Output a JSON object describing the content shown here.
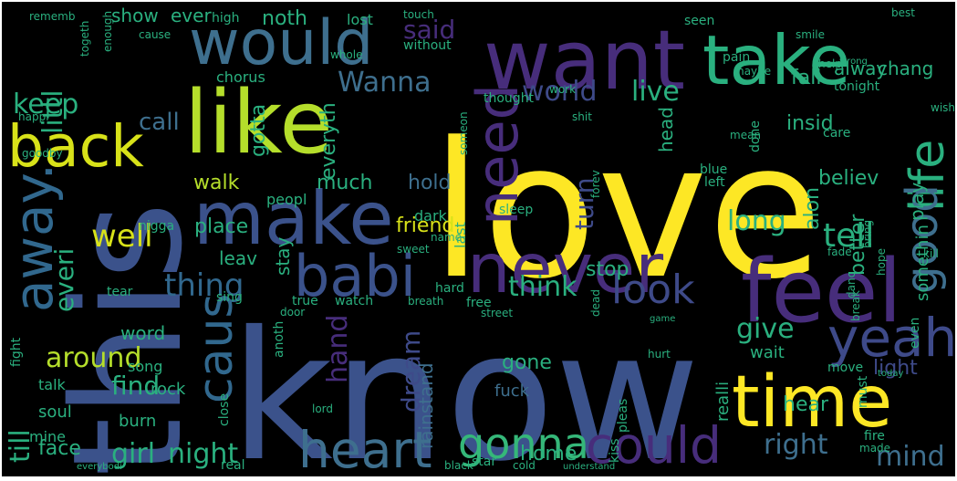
{
  "title": "",
  "words": [
    {
      "text": "love",
      "color": "#fde725"
    },
    {
      "text": "know",
      "color": "#3b528b"
    },
    {
      "text": "this",
      "color": "#3b528b"
    },
    {
      "text": "like",
      "color": "#b5de2b"
    },
    {
      "text": "want",
      "color": "#472d7b"
    },
    {
      "text": "would",
      "color": "#3e6f8e"
    },
    {
      "text": "take",
      "color": "#2ab07f"
    },
    {
      "text": "never",
      "color": "#472d7b"
    },
    {
      "text": "feel",
      "color": "#472d7b"
    },
    {
      "text": "make",
      "color": "#3b528b"
    },
    {
      "text": "babi",
      "color": "#3b528b"
    },
    {
      "text": "time",
      "color": "#fde725"
    },
    {
      "text": "heart",
      "color": "#3e6f8e"
    },
    {
      "text": "could",
      "color": "#472d7b"
    },
    {
      "text": "back",
      "color": "#d8e219"
    },
    {
      "text": "away.",
      "color": "#31688e"
    },
    {
      "text": "life",
      "color": "#2ab07f"
    },
    {
      "text": "need",
      "color": "#472d7b"
    },
    {
      "text": "yeah",
      "color": "#3e4a89"
    },
    {
      "text": "caus",
      "color": "#31688e"
    },
    {
      "text": "gonna",
      "color": "#35b779"
    },
    {
      "text": "look",
      "color": "#3e4a89"
    },
    {
      "text": "good",
      "color": "#3e6f8e"
    },
    {
      "text": "girl",
      "color": "#2ab07f"
    },
    {
      "text": "night",
      "color": "#2ab07f"
    },
    {
      "text": "world",
      "color": "#3e4a89"
    },
    {
      "text": "live",
      "color": "#2ab07f"
    },
    {
      "text": "thing",
      "color": "#31688e"
    },
    {
      "text": "think",
      "color": "#2ab07f"
    },
    {
      "text": "said",
      "color": "#472d7b"
    },
    {
      "text": "Wanna",
      "color": "#3e6f8e"
    },
    {
      "text": "keep",
      "color": "#2ab07f"
    },
    {
      "text": "littl",
      "color": "#2ab07f"
    },
    {
      "text": "well",
      "color": "#d8e219"
    },
    {
      "text": "around",
      "color": "#b5de2b"
    },
    {
      "text": "call",
      "color": "#3e6f8e"
    },
    {
      "text": "mind",
      "color": "#3e6f8e"
    },
    {
      "text": "right",
      "color": "#3e6f8e"
    },
    {
      "text": "give",
      "color": "#2ab07f"
    },
    {
      "text": "tell",
      "color": "#2ab07f"
    },
    {
      "text": "long",
      "color": "#2ab07f"
    },
    {
      "text": "find",
      "color": "#2ab07f"
    },
    {
      "text": "hand",
      "color": "#472d7b"
    },
    {
      "text": "dream",
      "color": "#3e4a89"
    },
    {
      "text": "turn",
      "color": "#3e4a89"
    },
    {
      "text": "hold",
      "color": "#3e6f8e"
    },
    {
      "text": "walk",
      "color": "#b5de2b"
    },
    {
      "text": "much",
      "color": "#2ab07f"
    },
    {
      "text": "everyth",
      "color": "#2ab07f"
    },
    {
      "text": "gotta",
      "color": "#2ab07f"
    },
    {
      "text": "till",
      "color": "#2ab07f"
    },
    {
      "text": "everi",
      "color": "#2ab07f"
    },
    {
      "text": "stop",
      "color": "#2ab07f"
    },
    {
      "text": "believ",
      "color": "#2ab07f"
    },
    {
      "text": "alon",
      "color": "#2ab07f"
    },
    {
      "text": "somethin",
      "color": "#2ab07f"
    },
    {
      "text": "better",
      "color": "#2ab07f"
    },
    {
      "text": "play",
      "color": "#2ab07f"
    },
    {
      "text": "fall",
      "color": "#2ab07f"
    },
    {
      "text": "alway",
      "color": "#2ab07f"
    },
    {
      "text": "chang",
      "color": "#2ab07f"
    },
    {
      "text": "noth",
      "color": "#2ab07f"
    },
    {
      "text": "ever",
      "color": "#2ab07f"
    },
    {
      "text": "show",
      "color": "#2ab07f"
    },
    {
      "text": "insid",
      "color": "#2ab07f"
    },
    {
      "text": "friend",
      "color": "#d8e219"
    },
    {
      "text": "wait",
      "color": "#2ab07f"
    },
    {
      "text": "light",
      "color": "#3e4a89"
    },
    {
      "text": "hear",
      "color": "#2ab07f"
    },
    {
      "text": "place",
      "color": "#2ab07f"
    },
    {
      "text": "stay",
      "color": "#2ab07f"
    },
    {
      "text": "word",
      "color": "#2ab07f"
    },
    {
      "text": "leav",
      "color": "#2ab07f"
    },
    {
      "text": "gone",
      "color": "#2ab07f"
    },
    {
      "text": "face",
      "color": "#2ab07f"
    },
    {
      "text": "home",
      "color": "#2ab07f"
    },
    {
      "text": "realli",
      "color": "#2ab07f"
    },
    {
      "text": "rainstand",
      "color": "#3e6f8e"
    },
    {
      "text": "fuck",
      "color": "#3e6f8e"
    },
    {
      "text": "soul",
      "color": "#2ab07f"
    },
    {
      "text": "talk",
      "color": "#2ab07f"
    },
    {
      "text": "mine",
      "color": "#2ab07f"
    },
    {
      "text": "burn",
      "color": "#2ab07f"
    },
    {
      "text": "rock",
      "color": "#2ab07f"
    },
    {
      "text": "song",
      "color": "#2ab07f"
    },
    {
      "text": "head",
      "color": "#2ab07f"
    },
    {
      "text": "sleep",
      "color": "#2ab07f"
    },
    {
      "text": "dark",
      "color": "#2ab07f"
    },
    {
      "text": "last",
      "color": "#2ab07f"
    },
    {
      "text": "peopl",
      "color": "#2ab07f"
    },
    {
      "text": "nigga",
      "color": "#2ab07f"
    },
    {
      "text": "sing",
      "color": "#2ab07f"
    },
    {
      "text": "chorus",
      "color": "#2ab07f"
    },
    {
      "text": "without",
      "color": "#2ab07f"
    },
    {
      "text": "lost",
      "color": "#2ab07f"
    },
    {
      "text": "thought",
      "color": "#2ab07f"
    },
    {
      "text": "tonight",
      "color": "#2ab07f"
    },
    {
      "text": "pain",
      "color": "#2ab07f"
    },
    {
      "text": "seen",
      "color": "#2ab07f"
    },
    {
      "text": "high",
      "color": "#2ab07f"
    },
    {
      "text": "rememb",
      "color": "#2ab07f"
    },
    {
      "text": "true",
      "color": "#2ab07f"
    },
    {
      "text": "watch",
      "color": "#2ab07f"
    },
    {
      "text": "free",
      "color": "#2ab07f"
    },
    {
      "text": "hard",
      "color": "#2ab07f"
    },
    {
      "text": "blue",
      "color": "#2ab07f"
    },
    {
      "text": "left",
      "color": "#2ab07f"
    },
    {
      "text": "done",
      "color": "#2ab07f"
    },
    {
      "text": "care",
      "color": "#2ab07f"
    },
    {
      "text": "danc",
      "color": "#2ab07f"
    },
    {
      "text": "hope",
      "color": "#2ab07f"
    },
    {
      "text": "fire",
      "color": "#2ab07f"
    },
    {
      "text": "made",
      "color": "#2ab07f"
    },
    {
      "text": "kiss",
      "color": "#2ab07f"
    },
    {
      "text": "pleas",
      "color": "#2ab07f"
    },
    {
      "text": "move",
      "color": "#2ab07f"
    },
    {
      "text": "even",
      "color": "#2ab07f"
    },
    {
      "text": "must",
      "color": "#2ab07f"
    },
    {
      "text": "star",
      "color": "#2ab07f"
    },
    {
      "text": "door",
      "color": "#2ab07f"
    },
    {
      "text": "tear",
      "color": "#2ab07f"
    },
    {
      "text": "fight",
      "color": "#2ab07f"
    },
    {
      "text": "close",
      "color": "#2ab07f"
    },
    {
      "text": "anoth",
      "color": "#2ab07f"
    },
    {
      "text": "kill",
      "color": "#2ab07f"
    },
    {
      "text": "bring",
      "color": "#2ab07f"
    },
    {
      "text": "break",
      "color": "#2ab07f"
    },
    {
      "text": "work",
      "color": "#2ab07f"
    },
    {
      "text": "mean",
      "color": "#2ab07f"
    },
    {
      "text": "shit",
      "color": "#2ab07f"
    },
    {
      "text": "someon",
      "color": "#2ab07f"
    },
    {
      "text": "forev",
      "color": "#2ab07f"
    },
    {
      "text": "cold",
      "color": "#2ab07f"
    },
    {
      "text": "real",
      "color": "#2ab07f"
    },
    {
      "text": "fade",
      "color": "#2ab07f"
    },
    {
      "text": "name",
      "color": "#2ab07f"
    },
    {
      "text": "sweet",
      "color": "#2ab07f"
    },
    {
      "text": "lord",
      "color": "#2ab07f"
    },
    {
      "text": "breath",
      "color": "#2ab07f"
    },
    {
      "text": "street",
      "color": "#2ab07f"
    },
    {
      "text": "dead",
      "color": "#2ab07f"
    },
    {
      "text": "game",
      "color": "#2ab07f"
    },
    {
      "text": "today",
      "color": "#2ab07f"
    },
    {
      "text": "black",
      "color": "#2ab07f"
    },
    {
      "text": "understand",
      "color": "#2ab07f"
    },
    {
      "text": "happi",
      "color": "#2ab07f"
    },
    {
      "text": "touch",
      "color": "#2ab07f"
    },
    {
      "text": "smile",
      "color": "#2ab07f"
    },
    {
      "text": "hurt",
      "color": "#2ab07f"
    },
    {
      "text": "everybodi",
      "color": "#2ab07f"
    },
    {
      "text": "goodby",
      "color": "#2ab07f"
    },
    {
      "text": "wrong",
      "color": "#2ab07f"
    },
    {
      "text": "enough",
      "color": "#2ab07f"
    },
    {
      "text": "maybe",
      "color": "#2ab07f"
    },
    {
      "text": "wish",
      "color": "#2ab07f"
    },
    {
      "text": "help",
      "color": "#2ab07f"
    },
    {
      "text": "best",
      "color": "#2ab07f"
    },
    {
      "text": "whole",
      "color": "#2ab07f"
    },
    {
      "text": "cause",
      "color": "#2ab07f"
    },
    {
      "text": "togeth",
      "color": "#2ab07f"
    }
  ]
}
